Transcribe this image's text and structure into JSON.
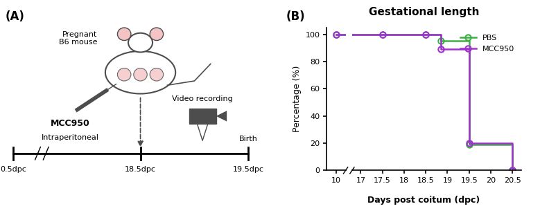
{
  "panel_a": {
    "label": "(A)",
    "mouse_label": "Pregnant\nB6 mouse",
    "drug": "MCC950",
    "route": "Intraperitoneal",
    "recording": "Video recording",
    "timeline": [
      "0.5dpc",
      "18.5dpc",
      "19.5dpc"
    ],
    "end_label": "Birth"
  },
  "chart_data": {
    "type": "line",
    "panel_label": "(B)",
    "title": "Gestational length",
    "x_label": "Days post coitum (dpc)",
    "y_label": "Percentage (%)",
    "x": [
      10,
      17.5,
      18.5,
      18.85,
      19.5,
      20.5
    ],
    "series": [
      {
        "name": "PBS",
        "color": "#3cb043",
        "marker": "o",
        "values": [
          100,
          100,
          100,
          95.2,
          19,
          0
        ]
      },
      {
        "name": "MCC950",
        "color": "#a030d0",
        "marker": "o",
        "values": [
          100,
          100,
          100,
          89.5,
          20,
          0
        ]
      }
    ],
    "xlim": [
      9.5,
      20.7
    ],
    "x_break": [
      10.5,
      16.8
    ],
    "xticks": [
      10,
      17,
      17.5,
      18,
      18.5,
      19,
      19.5,
      20,
      20.5
    ],
    "ylim": [
      0,
      105
    ],
    "yticks": [
      0,
      20,
      40,
      60,
      80,
      100
    ],
    "legend": "upper right",
    "grid": false
  }
}
